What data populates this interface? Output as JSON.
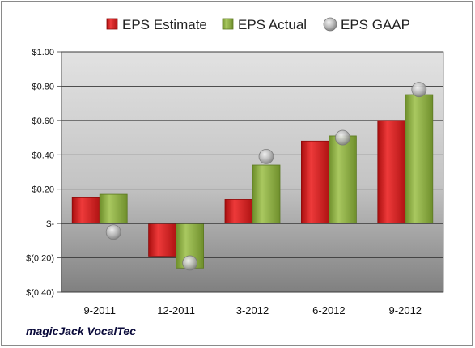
{
  "chart_data": {
    "type": "bar",
    "categories": [
      "9-2011",
      "12-2011",
      "3-2012",
      "6-2012",
      "9-2012"
    ],
    "series": [
      {
        "name": "EPS Estimate",
        "values": [
          0.15,
          -0.19,
          0.14,
          0.48,
          0.6
        ],
        "color": "#d11a1a"
      },
      {
        "name": "EPS Actual",
        "values": [
          0.17,
          -0.26,
          0.34,
          0.51,
          0.75
        ],
        "color": "#86a83c"
      }
    ],
    "scatter_series": {
      "name": "EPS GAAP",
      "values": [
        -0.05,
        -0.23,
        0.39,
        0.5,
        0.78
      ],
      "color": "#a8a8a8"
    },
    "y_tick_labels": [
      "$1.00",
      "$0.80",
      "$0.60",
      "$0.40",
      "$0.20",
      "$-",
      "$(0.20)",
      "$(0.40)"
    ],
    "y_tick_values": [
      1.0,
      0.8,
      0.6,
      0.4,
      0.2,
      0.0,
      -0.2,
      -0.4
    ],
    "ylim": [
      -0.4,
      1.0
    ],
    "grid": true,
    "legend_position": "top"
  },
  "footer": {
    "company": "magicJack VocalTec"
  }
}
